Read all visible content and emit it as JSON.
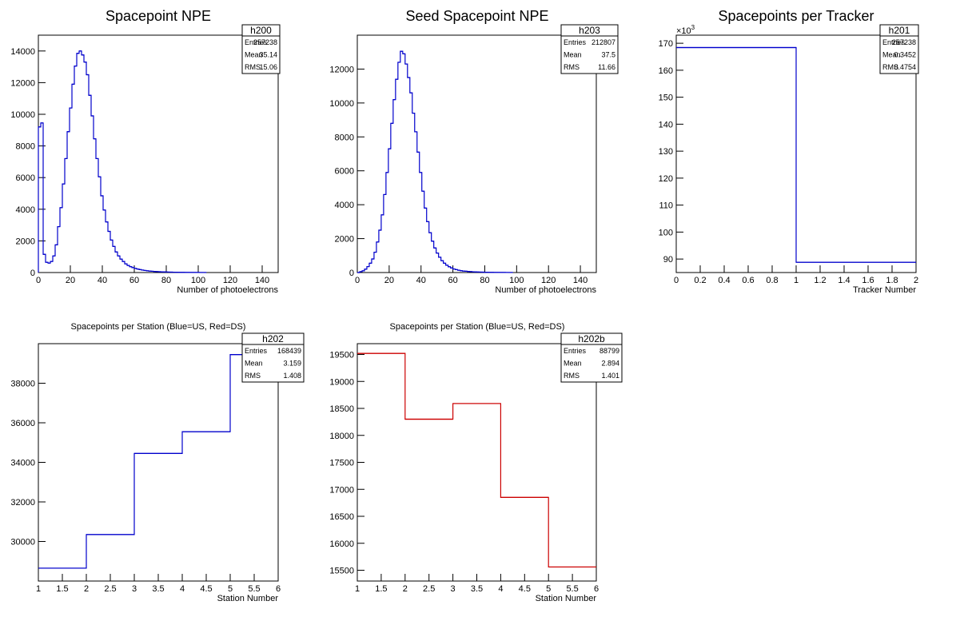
{
  "chart_data": [
    {
      "id": "h200",
      "type": "histogram",
      "title": "Spacepoint NPE",
      "xlabel": "Number of photoelectrons",
      "ylabel": "",
      "xlim": [
        0,
        150
      ],
      "ylim": [
        0,
        15000
      ],
      "xticks": [
        0,
        20,
        40,
        60,
        80,
        100,
        120,
        140
      ],
      "yticks": [
        0,
        2000,
        4000,
        6000,
        8000,
        10000,
        12000,
        14000
      ],
      "ytick_labels": [
        "0",
        "2000",
        "4000",
        "6000",
        "8000",
        "10000",
        "12000",
        "14000"
      ],
      "bin_width": 1.5,
      "values": [
        9200,
        9450,
        1150,
        650,
        600,
        700,
        1050,
        1750,
        2900,
        4100,
        5600,
        7200,
        8900,
        10400,
        11900,
        13050,
        13850,
        14000,
        13750,
        13300,
        12500,
        11200,
        9900,
        8450,
        7200,
        6050,
        4850,
        3950,
        3200,
        2600,
        2050,
        1650,
        1300,
        1050,
        850,
        700,
        550,
        450,
        370,
        310,
        260,
        220,
        185,
        155,
        130,
        110,
        95,
        80,
        68,
        58,
        50,
        44,
        38,
        33,
        28,
        24,
        21,
        18,
        16,
        14,
        12,
        10,
        9,
        8,
        7,
        6,
        5,
        4,
        3,
        2
      ],
      "color": "#0000cc",
      "stats": {
        "name": "h200",
        "rows": [
          [
            "Entries",
            "257238"
          ],
          [
            "Mean",
            "35.14"
          ],
          [
            "RMS",
            "15.06"
          ]
        ]
      }
    },
    {
      "id": "h203",
      "type": "histogram",
      "title": "Seed Spacepoint NPE",
      "xlabel": "Number of photoelectrons",
      "ylabel": "",
      "xlim": [
        0,
        150
      ],
      "ylim": [
        0,
        14000
      ],
      "xticks": [
        0,
        20,
        40,
        60,
        80,
        100,
        120,
        140
      ],
      "yticks": [
        0,
        2000,
        4000,
        6000,
        8000,
        10000,
        12000
      ],
      "ytick_labels": [
        "0",
        "2000",
        "4000",
        "6000",
        "8000",
        "10000",
        "12000"
      ],
      "bin_width": 1.5,
      "values": [
        0,
        50,
        100,
        200,
        350,
        550,
        800,
        1200,
        1800,
        2500,
        3400,
        4600,
        5900,
        7300,
        8800,
        10200,
        11400,
        12400,
        13050,
        12900,
        12300,
        11500,
        10600,
        9400,
        8300,
        7100,
        5900,
        4800,
        3800,
        3000,
        2350,
        1850,
        1450,
        1150,
        900,
        700,
        550,
        430,
        340,
        270,
        210,
        170,
        135,
        110,
        90,
        75,
        62,
        52,
        44,
        37,
        31,
        26,
        22,
        18,
        15,
        13,
        11,
        9,
        8,
        7,
        6,
        5,
        4,
        3,
        2
      ],
      "color": "#0000cc",
      "stats": {
        "name": "h203",
        "rows": [
          [
            "Entries",
            "212807"
          ],
          [
            "Mean",
            "37.5"
          ],
          [
            "RMS",
            "11.66"
          ]
        ]
      }
    },
    {
      "id": "h201",
      "type": "histogram",
      "title": "Spacepoints per Tracker",
      "xlabel": "Tracker Number",
      "ylabel": "",
      "xlim": [
        0,
        2
      ],
      "ylim": [
        85,
        173
      ],
      "y_multiplier": "×10",
      "y_exponent": "3",
      "xticks": [
        0,
        0.2,
        0.4,
        0.6,
        0.8,
        1,
        1.2,
        1.4,
        1.6,
        1.8,
        2
      ],
      "xtick_labels": [
        "0",
        "0.2",
        "0.4",
        "0.6",
        "0.8",
        "1",
        "1.2",
        "1.4",
        "1.6",
        "1.8",
        "2"
      ],
      "yticks": [
        90,
        100,
        110,
        120,
        130,
        140,
        150,
        160,
        170
      ],
      "ytick_labels": [
        "90",
        "100",
        "110",
        "120",
        "130",
        "140",
        "150",
        "160",
        "170"
      ],
      "bin_edges": [
        0,
        1,
        2
      ],
      "values": [
        168.4,
        88.8
      ],
      "color": "#0000cc",
      "stats": {
        "name": "h201",
        "rows": [
          [
            "Entries",
            "257238"
          ],
          [
            "Mean",
            "0.3452"
          ],
          [
            "RMS",
            "0.4754"
          ]
        ]
      }
    },
    {
      "id": "h202",
      "type": "histogram",
      "title": "Spacepoints per Station (Blue=US, Red=DS)",
      "xlabel": "Station Number",
      "ylabel": "",
      "xlim": [
        1,
        6
      ],
      "ylim": [
        28000,
        40000
      ],
      "xticks": [
        1,
        1.5,
        2,
        2.5,
        3,
        3.5,
        4,
        4.5,
        5,
        5.5,
        6
      ],
      "xtick_labels": [
        "1",
        "1.5",
        "2",
        "2.5",
        "3",
        "3.5",
        "4",
        "4.5",
        "5",
        "5.5",
        "6"
      ],
      "yticks": [
        30000,
        32000,
        34000,
        36000,
        38000
      ],
      "ytick_labels": [
        "30000",
        "32000",
        "34000",
        "36000",
        "38000"
      ],
      "bin_edges": [
        1,
        2,
        3,
        4,
        5,
        6
      ],
      "values": [
        28650,
        30350,
        34450,
        35550,
        39450
      ],
      "color": "#0000cc",
      "stats": {
        "name": "h202",
        "rows": [
          [
            "Entries",
            "168439"
          ],
          [
            "Mean",
            "3.159"
          ],
          [
            "RMS",
            "1.408"
          ]
        ]
      }
    },
    {
      "id": "h202b",
      "type": "histogram",
      "title": "Spacepoints per Station (Blue=US, Red=DS)",
      "xlabel": "Station Number",
      "ylabel": "",
      "xlim": [
        1,
        6
      ],
      "ylim": [
        15300,
        19700
      ],
      "xticks": [
        1,
        1.5,
        2,
        2.5,
        3,
        3.5,
        4,
        4.5,
        5,
        5.5,
        6
      ],
      "xtick_labels": [
        "1",
        "1.5",
        "2",
        "2.5",
        "3",
        "3.5",
        "4",
        "4.5",
        "5",
        "5.5",
        "6"
      ],
      "yticks": [
        15500,
        16000,
        16500,
        17000,
        17500,
        18000,
        18500,
        19000,
        19500
      ],
      "ytick_labels": [
        "15500",
        "16000",
        "16500",
        "17000",
        "17500",
        "18000",
        "18500",
        "19000",
        "19500"
      ],
      "bin_edges": [
        1,
        2,
        3,
        4,
        5,
        6
      ],
      "values": [
        19520,
        18300,
        18590,
        16850,
        15560
      ],
      "color": "#cc0000",
      "stats": {
        "name": "h202b",
        "rows": [
          [
            "Entries",
            "88799"
          ],
          [
            "Mean",
            "2.894"
          ],
          [
            "RMS",
            "1.401"
          ]
        ]
      }
    }
  ]
}
